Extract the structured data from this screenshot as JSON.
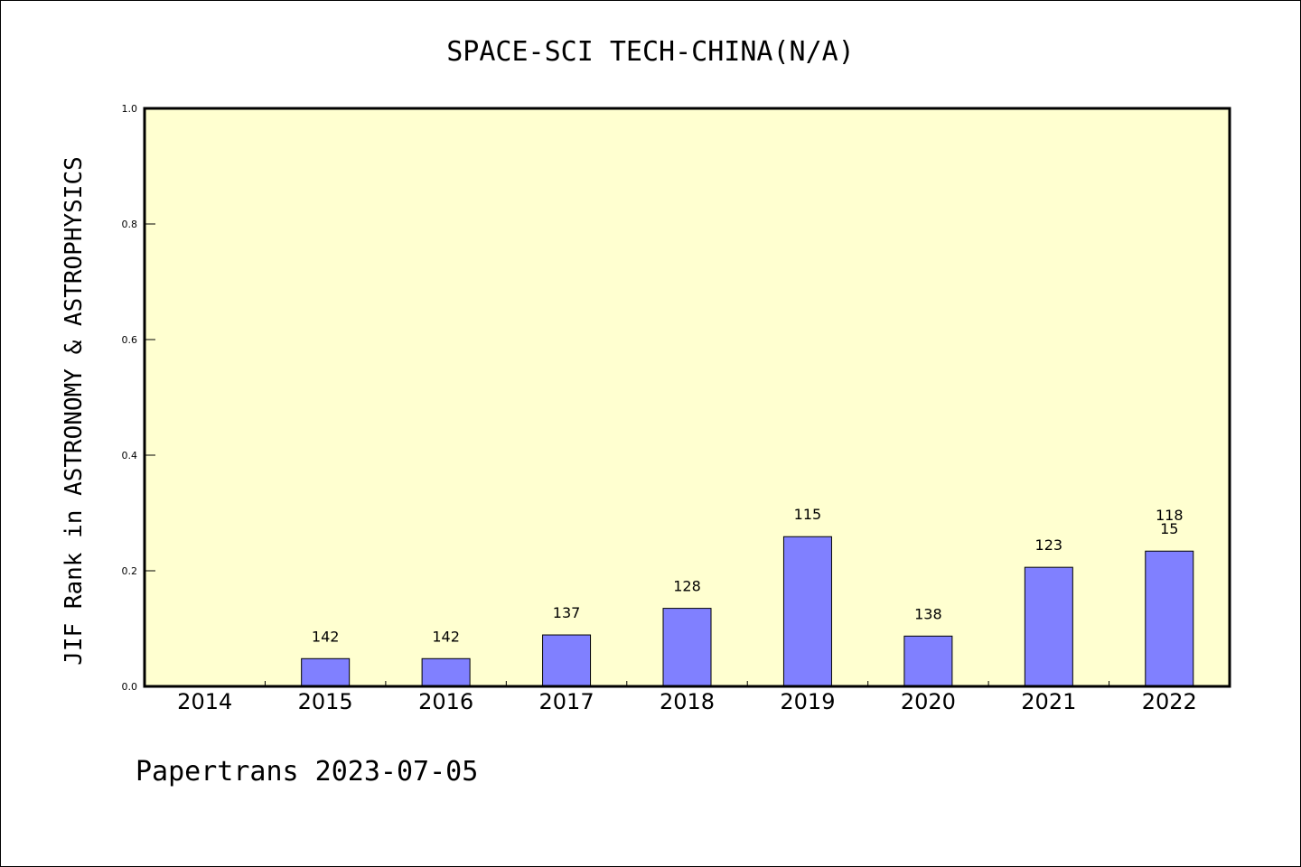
{
  "chart_data": {
    "type": "bar",
    "title": "SPACE-SCI TECH-CHINA(N/A)",
    "xlabel": "",
    "ylabel": "JIF Rank in ASTRONOMY & ASTROPHYSICS",
    "ylim": [
      0,
      1.0
    ],
    "yticks": [
      "0.0",
      "0.2",
      "0.4",
      "0.6",
      "0.8",
      "1.0"
    ],
    "categories": [
      "2014",
      "2015",
      "2016",
      "2017",
      "2018",
      "2019",
      "2020",
      "2021",
      "2022"
    ],
    "values": [
      null,
      0.048,
      0.048,
      0.089,
      0.135,
      0.259,
      0.087,
      0.206,
      0.234
    ],
    "labels": [
      "",
      "142",
      "142",
      "137",
      "128",
      "115",
      "138",
      "123",
      "15"
    ],
    "extra_labels": [
      "",
      "",
      "",
      "",
      "",
      "",
      "",
      "",
      "118"
    ],
    "grid": false,
    "colors": {
      "plot_bg": "#ffffd0",
      "bar": "#8080ff",
      "bar_edge": "#000000"
    }
  },
  "footer": "Papertrans 2023-07-05"
}
